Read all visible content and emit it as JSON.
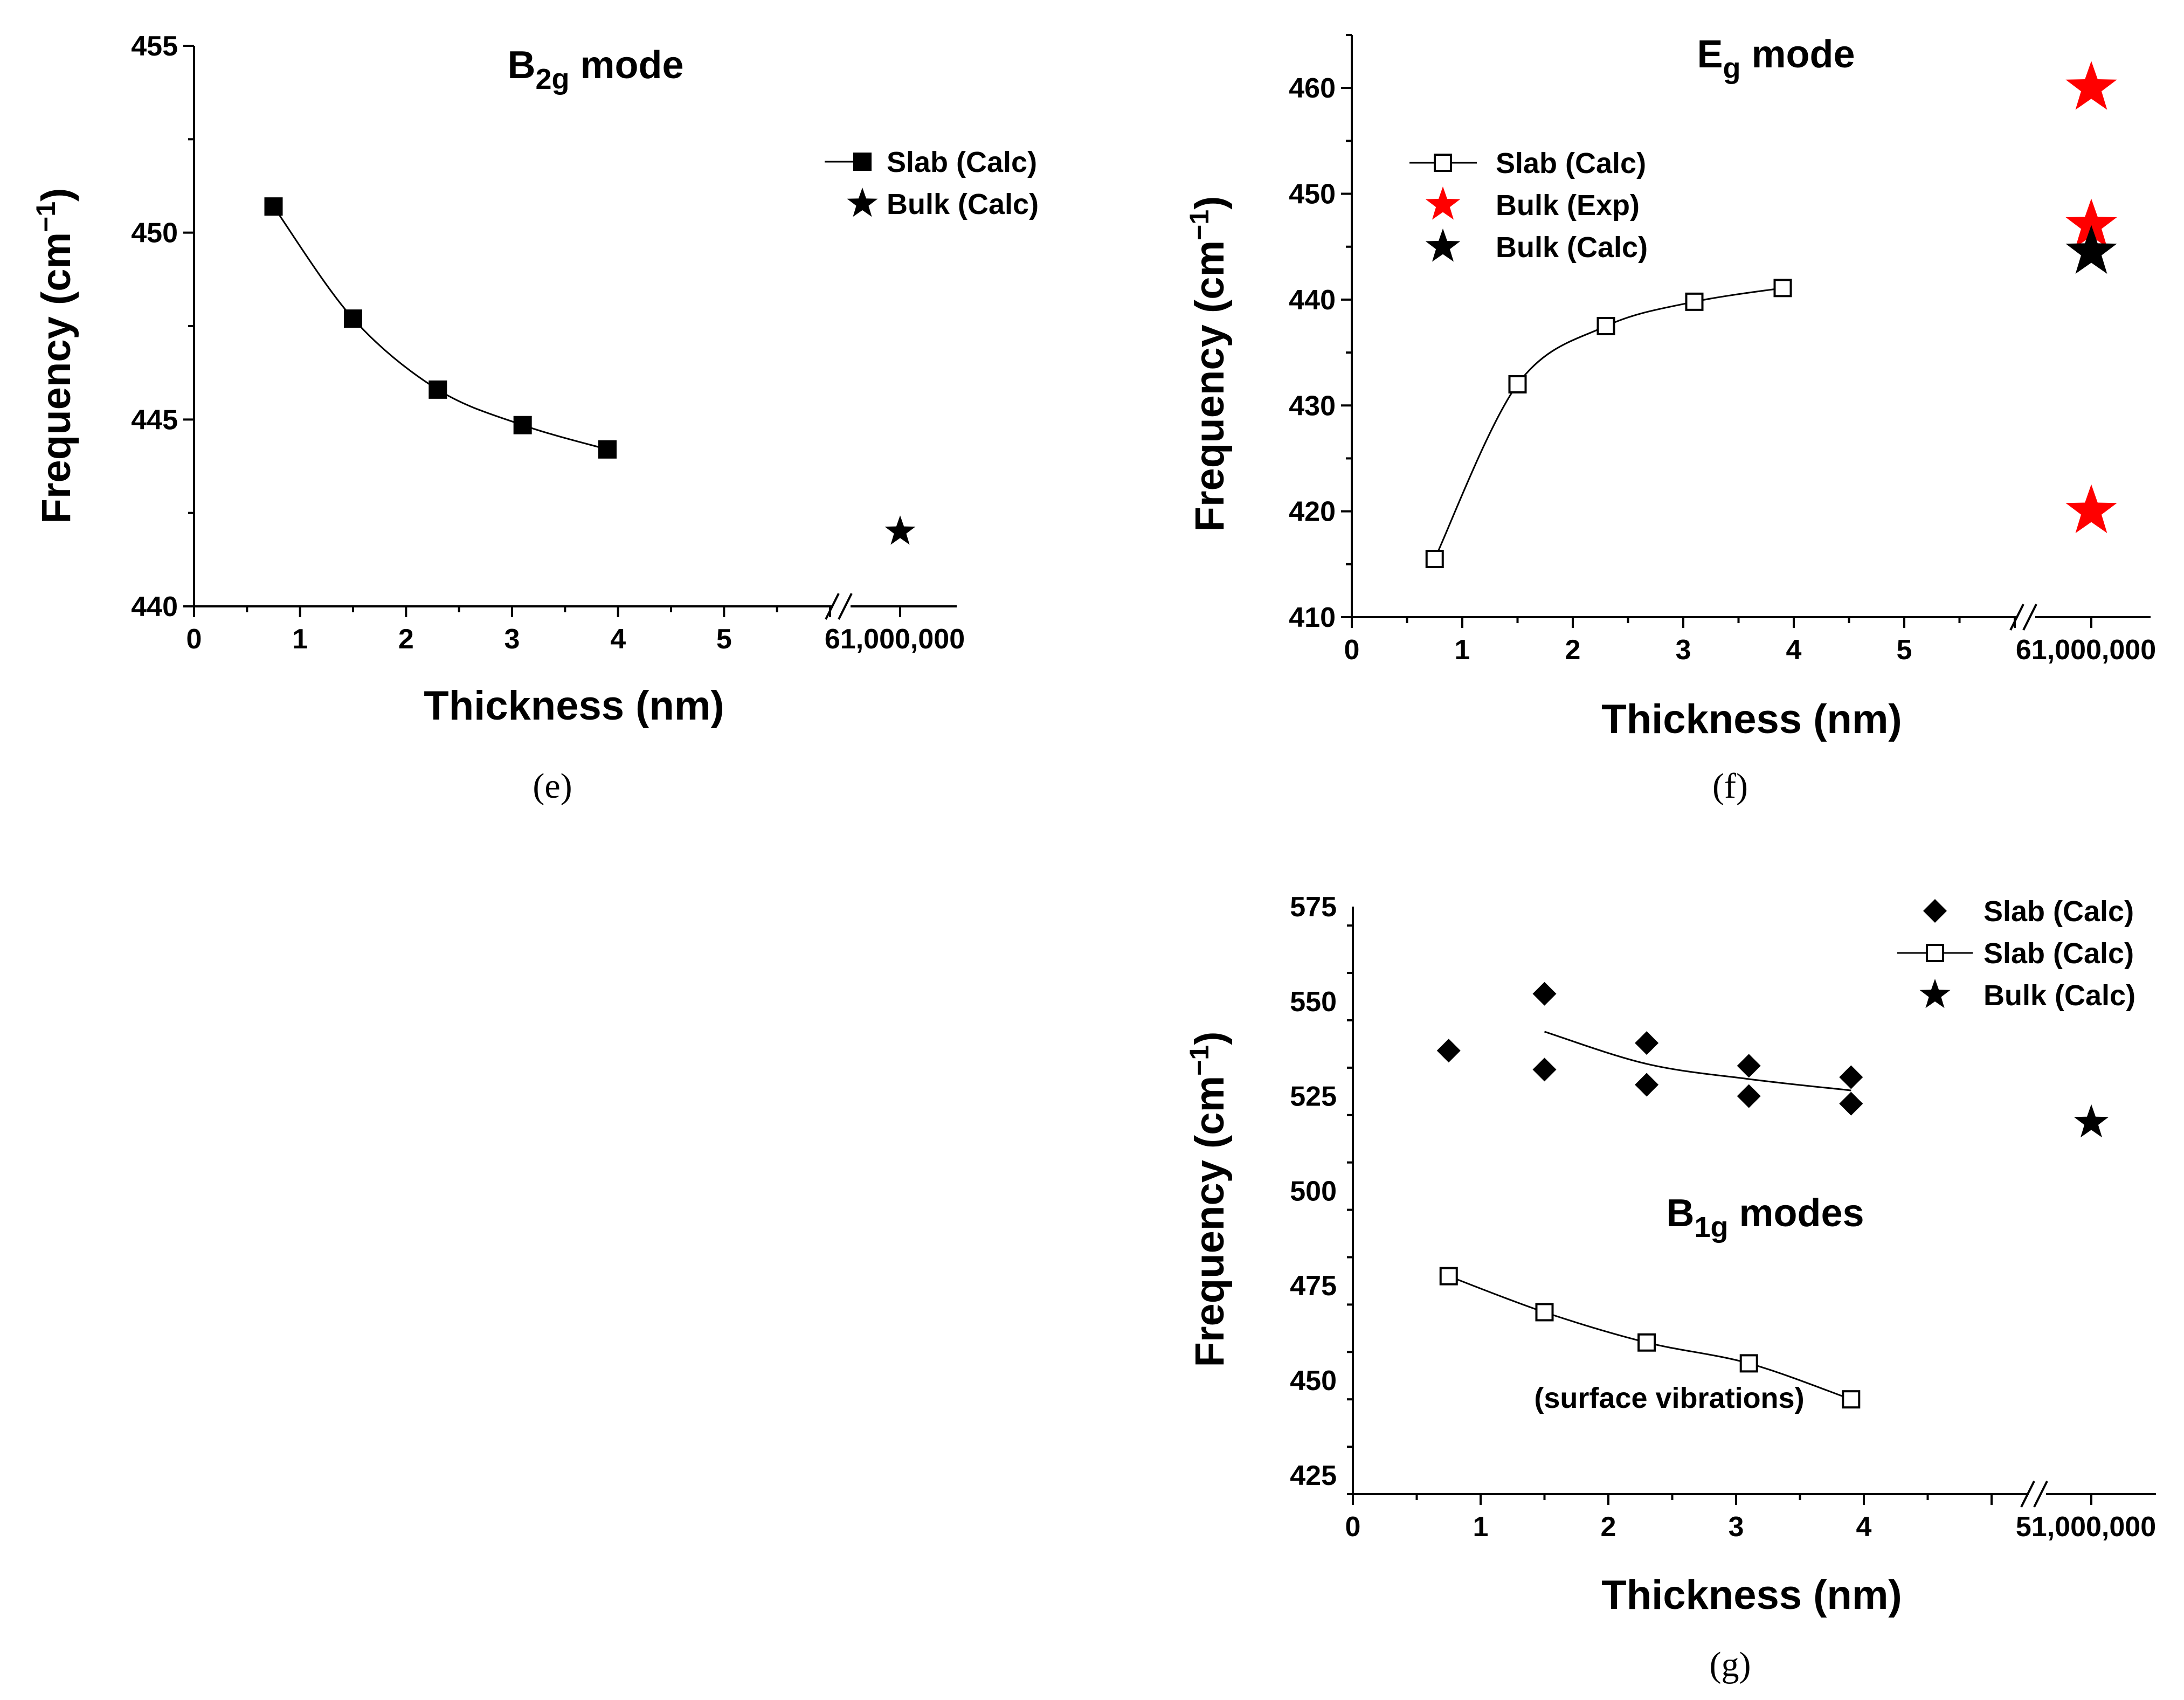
{
  "chart_data": [
    {
      "id": "e",
      "type": "line",
      "caption": "(e)",
      "title": {
        "main": "B",
        "sub": "2g",
        "rest": " mode"
      },
      "xlabel": "Thickness (nm)",
      "ylabel": {
        "main": "Frequency (cm",
        "sup": "−1",
        "end": ")"
      },
      "xlim": [
        0,
        6
      ],
      "ylim": [
        440,
        455
      ],
      "xticks": [
        0,
        1,
        2,
        3,
        4,
        5
      ],
      "xtick_labels": [
        "0",
        "1",
        "2",
        "3",
        "4",
        "5"
      ],
      "break_label": "61,000,000",
      "yticks": [
        440,
        445,
        450,
        455
      ],
      "ytick_labels": [
        "440",
        "445",
        "450",
        "455"
      ],
      "series": [
        {
          "name": "Slab (Calc)",
          "marker": "square-filled",
          "line": true,
          "color": "#000000",
          "x": [
            0.75,
            1.5,
            2.3,
            3.1,
            3.9
          ],
          "y": [
            450.7,
            447.7,
            445.8,
            444.85,
            444.2
          ]
        },
        {
          "name": "Bulk (Calc)",
          "marker": "star",
          "size": "small",
          "line": false,
          "color": "#000000",
          "x": [
            "1,000,000"
          ],
          "y": [
            442.0
          ]
        }
      ],
      "legend_position": "top-right"
    },
    {
      "id": "f",
      "type": "line",
      "caption": "(f)",
      "title": {
        "main": "E",
        "sub": "g",
        "rest": " mode"
      },
      "xlabel": "Thickness (nm)",
      "ylabel": {
        "main": "Frequency (cm",
        "sup": "−1",
        "end": ")"
      },
      "xlim": [
        0,
        6
      ],
      "ylim": [
        410,
        465
      ],
      "xticks": [
        0,
        1,
        2,
        3,
        4,
        5
      ],
      "xtick_labels": [
        "0",
        "1",
        "2",
        "3",
        "4",
        "5"
      ],
      "break_label": "61,000,000",
      "yticks": [
        410,
        420,
        430,
        440,
        450,
        460
      ],
      "ytick_labels": [
        "410",
        "420",
        "430",
        "440",
        "450",
        "460"
      ],
      "series": [
        {
          "name": "Slab (Calc)",
          "marker": "square-open",
          "line": true,
          "color": "#000000",
          "x": [
            0.75,
            1.5,
            2.3,
            3.1,
            3.9
          ],
          "y": [
            415.5,
            432.0,
            437.5,
            439.8,
            441.1
          ]
        },
        {
          "name": "Bulk (Exp)",
          "marker": "star",
          "size": "large",
          "line": false,
          "color": "#ff0000",
          "x": [
            "1,000,000",
            "1,000,000",
            "1,000,000"
          ],
          "y": [
            460.0,
            447.0,
            420.0
          ]
        },
        {
          "name": "Bulk (Calc)",
          "marker": "star",
          "size": "large",
          "line": false,
          "color": "#000000",
          "x": [
            "1,000,000"
          ],
          "y": [
            444.5
          ]
        }
      ],
      "legend_position": "top-left"
    },
    {
      "id": "g",
      "type": "line",
      "caption": "(g)",
      "title": {
        "main": "B",
        "sub": "1g",
        "rest": " modes"
      },
      "annotation": "(surface vibrations)",
      "xlabel": "Thickness (nm)",
      "ylabel": {
        "main": "Frequency (cm",
        "sup": "−1",
        "end": ")"
      },
      "xlim": [
        0,
        5
      ],
      "ylim": [
        420,
        575
      ],
      "xticks": [
        0,
        1,
        2,
        3,
        4
      ],
      "xtick_labels": [
        "0",
        "1",
        "2",
        "3",
        "4"
      ],
      "break_label": "51,000,000",
      "yticks": [
        425,
        450,
        475,
        500,
        525,
        550,
        575
      ],
      "ytick_labels": [
        "425",
        "450",
        "475",
        "500",
        "525",
        "550",
        "575"
      ],
      "series": [
        {
          "name": "Slab (Calc)",
          "marker": "diamond-filled",
          "line": false,
          "color": "#000000",
          "x": [
            0.75,
            1.5,
            1.5,
            2.3,
            2.3,
            3.1,
            3.1,
            3.9,
            3.9
          ],
          "y": [
            537,
            552,
            532,
            539,
            528,
            533,
            525,
            530,
            523
          ]
        },
        {
          "name": "Slab (Calc)",
          "marker": "none",
          "line": true,
          "color": "#000000",
          "legend_marker": "square-open",
          "x": [
            1.5,
            2.3,
            3.1,
            3.9
          ],
          "y": [
            542,
            533.5,
            529.5,
            526.5
          ]
        },
        {
          "name": "Slab (Calc)",
          "marker": "square-open",
          "line": true,
          "color": "#000000",
          "in_legend": false,
          "x": [
            0.75,
            1.5,
            2.3,
            3.1,
            3.9
          ],
          "y": [
            477.5,
            468,
            460,
            454.5,
            445
          ]
        },
        {
          "name": "Bulk (Calc)",
          "marker": "star",
          "size": "medium",
          "line": false,
          "color": "#000000",
          "x": [
            "1,000,000"
          ],
          "y": [
            518
          ]
        }
      ],
      "legend_position": "top-right"
    }
  ]
}
